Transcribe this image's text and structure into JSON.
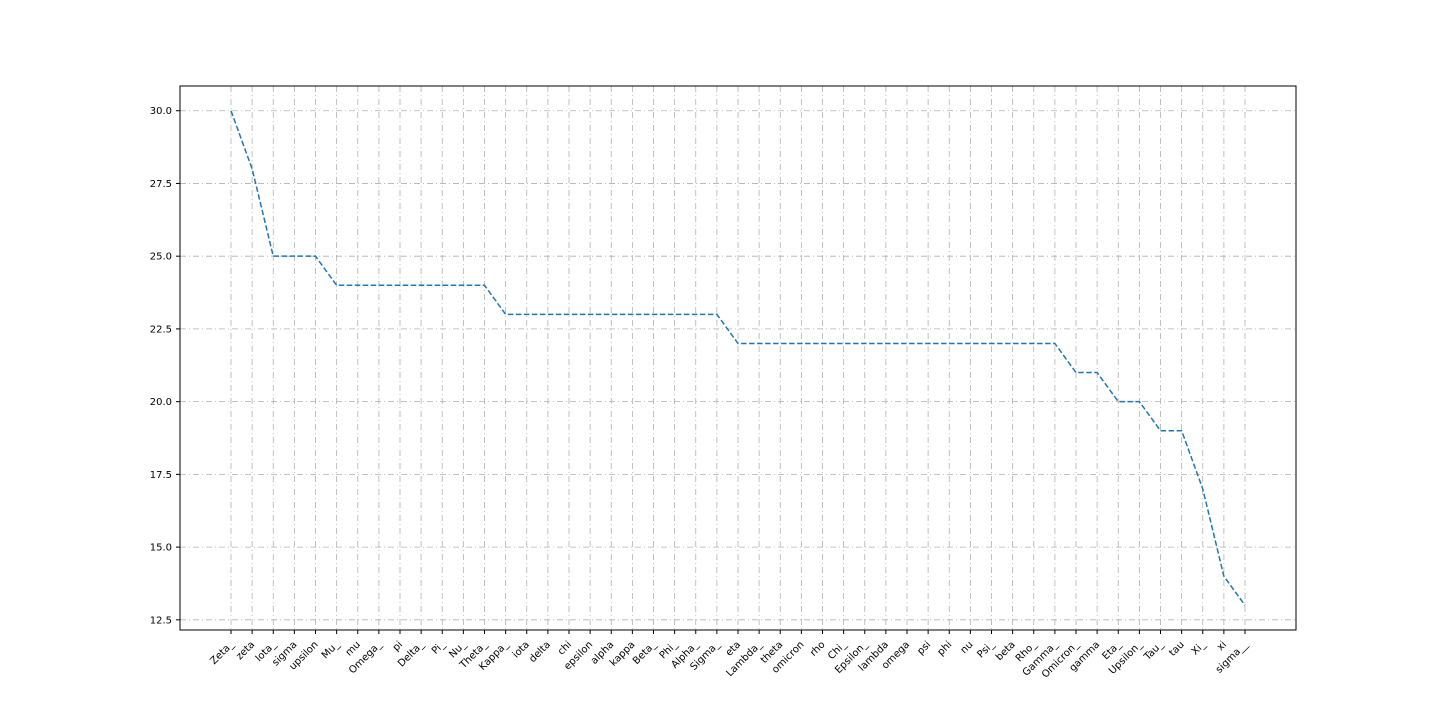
{
  "chart_data": {
    "type": "line",
    "title": "",
    "xlabel": "",
    "ylabel": "",
    "categories": [
      "Zeta_",
      "zeta",
      "Iota_",
      "sigma",
      "upsilon",
      "Mu_",
      "mu",
      "Omega_",
      "pi",
      "Delta_",
      "Pi_",
      "Nu_",
      "Theta_",
      "Kappa_",
      "iota",
      "delta",
      "chi",
      "epsilon",
      "alpha",
      "kappa",
      "Beta_",
      "Phi_",
      "Alpha_",
      "Sigma_",
      "eta",
      "Lambda_",
      "theta",
      "omicron",
      "rho",
      "Chi_",
      "Epsilon_",
      "lambda",
      "omega",
      "psi",
      "phi",
      "nu",
      "Psi_",
      "beta",
      "Rho_",
      "Gamma_",
      "Omicron_",
      "gamma",
      "Eta_",
      "Upsilon_",
      "Tau_",
      "tau",
      "Xi_",
      "xi",
      "sigma__"
    ],
    "series": [
      {
        "values": [
          30,
          28,
          25,
          25,
          25,
          24,
          24,
          24,
          24,
          24,
          24,
          24,
          24,
          23,
          23,
          23,
          23,
          23,
          23,
          23,
          23,
          23,
          23,
          23,
          22,
          22,
          22,
          22,
          22,
          22,
          22,
          22,
          22,
          22,
          22,
          22,
          22,
          22,
          22,
          22,
          21,
          21,
          20,
          20,
          19,
          19,
          17,
          14,
          13
        ],
        "color": "#1f77b4",
        "line_style": "dashed"
      }
    ],
    "yticks": [
      "12.5",
      "15.0",
      "17.5",
      "20.0",
      "22.5",
      "25.0",
      "27.5",
      "30.0"
    ],
    "ylim": [
      12.15,
      30.85
    ],
    "grid": true,
    "grid_style": "dash-dot",
    "legend": false
  }
}
